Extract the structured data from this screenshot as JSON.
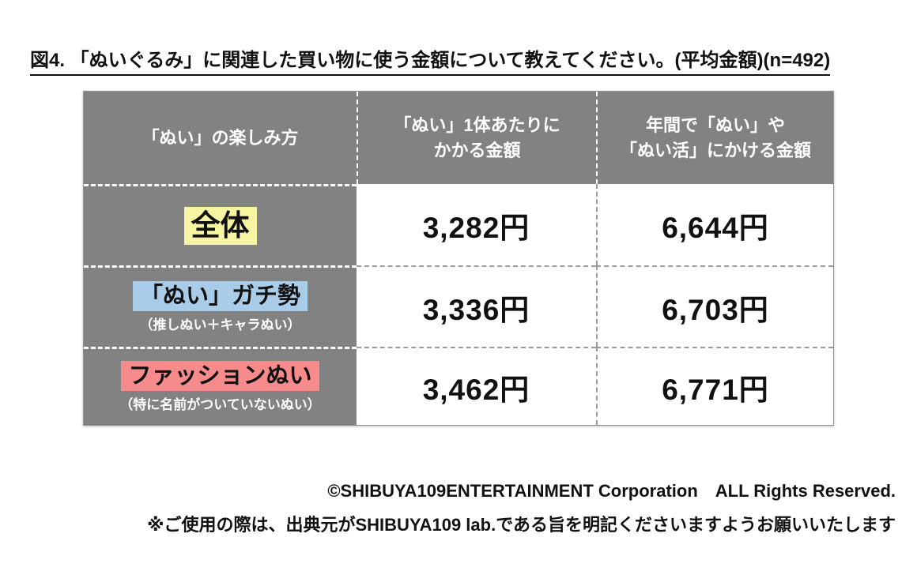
{
  "title": "図4. 「ぬいぐるみ」に関連した買い物に使う金額について教えてください。(平均金額)(n=492)",
  "table": {
    "header": {
      "col1": "「ぬい」の楽しみ方",
      "col2_line1": "「ぬい」1体あたりに",
      "col2_line2": "かかる金額",
      "col3_line1": "年間で「ぬい」や",
      "col3_line2": "「ぬい活」にかける金額"
    },
    "rows": [
      {
        "label": "全体",
        "sublabel": "",
        "highlight_color": "#f6f6a2",
        "per_unit": "3,282円",
        "annual": "6,644円"
      },
      {
        "label": "「ぬい」ガチ勢",
        "sublabel": "（推しぬい＋キャラぬい）",
        "highlight_color": "#a9cce8",
        "per_unit": "3,336円",
        "annual": "6,703円"
      },
      {
        "label": "ファッションぬい",
        "sublabel": "（特に名前がついていないぬい）",
        "highlight_color": "#f78b8b",
        "per_unit": "3,462円",
        "annual": "6,771円"
      }
    ]
  },
  "chart_data": {
    "type": "table",
    "title": "図4. 「ぬいぐるみ」に関連した買い物に使う金額について教えてください。(平均金額)(n=492)",
    "categories": [
      "全体",
      "「ぬい」ガチ勢",
      "ファッションぬい"
    ],
    "series": [
      {
        "name": "「ぬい」1体あたりにかかる金額",
        "values": [
          3282,
          3336,
          3462
        ],
        "unit": "円"
      },
      {
        "name": "年間で「ぬい」や「ぬい活」にかける金額",
        "values": [
          6644,
          6703,
          6771
        ],
        "unit": "円"
      }
    ],
    "n": 492
  },
  "footer": {
    "copyright": "©SHIBUYA109ENTERTAINMENT Corporation　ALL Rights Reserved.",
    "note": "※ご使用の際は、出典元がSHIBUYA109 lab.である旨を明記くださいますようお願いいたします"
  },
  "colors": {
    "header_gray": "#828282",
    "highlight_yellow": "#f6f6a2",
    "highlight_blue": "#a9cce8",
    "highlight_pink": "#f78b8b"
  }
}
